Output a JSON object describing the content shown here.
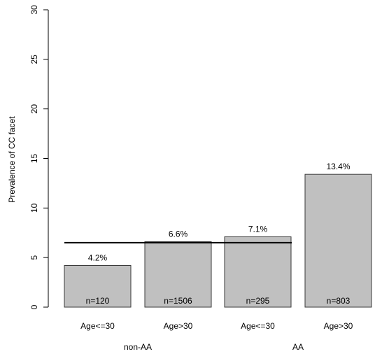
{
  "chart_data": {
    "type": "bar",
    "ylabel": "Prevalence of CC facet",
    "ylim": [
      0,
      30
    ],
    "yticks": [
      0,
      5,
      10,
      15,
      20,
      25,
      30
    ],
    "bar_color": "#c0c0c0",
    "bar_stroke": "#3a3a3a",
    "reference_line": {
      "value": 6.5
    },
    "groups": [
      {
        "label": "non-AA"
      },
      {
        "label": "AA"
      }
    ],
    "bars": [
      {
        "group": 0,
        "category": "Age<=30",
        "value": 4.2,
        "pct_label": "4.2%",
        "n_label": "n=120"
      },
      {
        "group": 0,
        "category": "Age>30",
        "value": 6.6,
        "pct_label": "6.6%",
        "n_label": "n=1506"
      },
      {
        "group": 1,
        "category": "Age<=30",
        "value": 7.1,
        "pct_label": "7.1%",
        "n_label": "n=295"
      },
      {
        "group": 1,
        "category": "Age>30",
        "value": 13.4,
        "pct_label": "13.4%",
        "n_label": "n=803"
      }
    ]
  }
}
